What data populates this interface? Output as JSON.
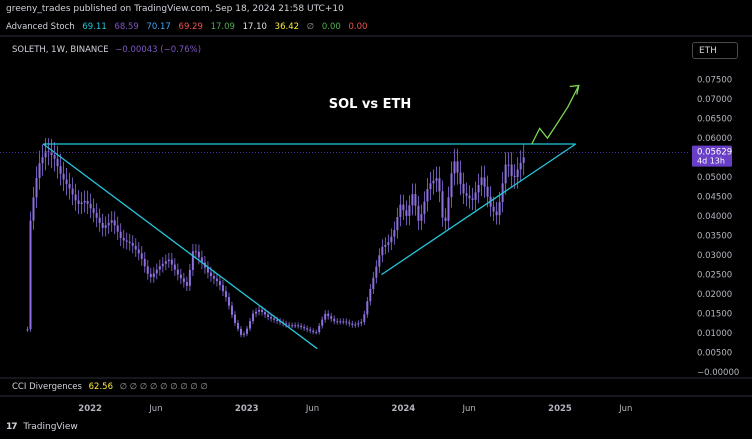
{
  "header": {
    "published": "greeny_trades published on TradingView.com, Sep 18, 2024 21:58 UTC+10"
  },
  "indicator_row": {
    "name": "Advanced Stoch",
    "values": [
      {
        "text": "69.11",
        "color": "#26c6da"
      },
      {
        "text": "68.59",
        "color": "#7e57c2"
      },
      {
        "text": "70.17",
        "color": "#42a5f5"
      },
      {
        "text": "69.29",
        "color": "#ef5350"
      },
      {
        "text": "17.09",
        "color": "#4caf50"
      },
      {
        "text": "17.10",
        "color": "#e0e0e0"
      },
      {
        "text": "36.42",
        "color": "#ffeb3b"
      },
      {
        "text": "∅",
        "color": "#9e9e9e"
      },
      {
        "text": "0.00",
        "color": "#4caf50"
      },
      {
        "text": "0.00",
        "color": "#ef5350"
      }
    ]
  },
  "symbol_row": {
    "symbol": "SOLETH, 1W, BINANCE",
    "change": "−0.00043 (−0.76%)",
    "change_color": "#7e57c2"
  },
  "currency_button": "ETH",
  "cci_row": {
    "name": "CCI Divergences",
    "value": "62.56",
    "value_color": "#ffeb3b",
    "placeholders": [
      "∅",
      "∅",
      "∅",
      "∅",
      "∅",
      "∅",
      "∅",
      "∅",
      "∅"
    ]
  },
  "footer": {
    "brand": "TradingView",
    "logo_glyph": "17"
  },
  "colors": {
    "candle": "#8d6fe0",
    "trendline": "#26c6da",
    "projection": "#7ed957",
    "price_badge": "#6a3fc7"
  },
  "chart_data": {
    "type": "candlestick",
    "title": "SOL vs ETH",
    "price_label": {
      "value": "0.05629",
      "countdown": "4d 13h"
    },
    "y_ticks": [
      0.075,
      0.07,
      0.065,
      0.06,
      0.055,
      0.05,
      0.045,
      0.04,
      0.035,
      0.03,
      0.025,
      0.02,
      0.015,
      0.01,
      0.005,
      0.0
    ],
    "y_tick_labels": [
      "0.07500",
      "0.07000",
      "0.06500",
      "0.06000",
      "0.05500",
      "0.05000",
      "0.04500",
      "0.04000",
      "0.03500",
      "0.03000",
      "0.02500",
      "0.02000",
      "0.01500",
      "0.01000",
      "0.00500",
      "−0.00000"
    ],
    "ylim": [
      -0.001,
      0.0785
    ],
    "x_ticks": [
      {
        "label": "2022",
        "t": 2022.0
      },
      {
        "label": "Jun",
        "t": 2022.42
      },
      {
        "label": "2023",
        "t": 2023.0
      },
      {
        "label": "Jun",
        "t": 2023.42
      },
      {
        "label": "2024",
        "t": 2024.0
      },
      {
        "label": "Jun",
        "t": 2024.42
      },
      {
        "label": "2025",
        "t": 2025.0
      },
      {
        "label": "Jun",
        "t": 2025.42
      }
    ],
    "xlim": [
      2021.45,
      2025.83
    ],
    "price_path": [
      [
        2021.6,
        0.011
      ],
      [
        2021.62,
        0.04
      ],
      [
        2021.67,
        0.053
      ],
      [
        2021.72,
        0.057
      ],
      [
        2021.77,
        0.055
      ],
      [
        2021.82,
        0.05
      ],
      [
        2021.87,
        0.047
      ],
      [
        2021.92,
        0.043
      ],
      [
        2021.97,
        0.044
      ],
      [
        2022.02,
        0.041
      ],
      [
        2022.08,
        0.037
      ],
      [
        2022.14,
        0.039
      ],
      [
        2022.2,
        0.034
      ],
      [
        2022.26,
        0.033
      ],
      [
        2022.32,
        0.03
      ],
      [
        2022.38,
        0.024
      ],
      [
        2022.44,
        0.027
      ],
      [
        2022.5,
        0.029
      ],
      [
        2022.56,
        0.025
      ],
      [
        2022.62,
        0.022
      ],
      [
        2022.66,
        0.032
      ],
      [
        2022.7,
        0.029
      ],
      [
        2022.76,
        0.025
      ],
      [
        2022.82,
        0.023
      ],
      [
        2022.87,
        0.019
      ],
      [
        2022.92,
        0.013
      ],
      [
        2022.97,
        0.009
      ],
      [
        2023.0,
        0.011
      ],
      [
        2023.04,
        0.015
      ],
      [
        2023.08,
        0.016
      ],
      [
        2023.14,
        0.014
      ],
      [
        2023.2,
        0.013
      ],
      [
        2023.26,
        0.012
      ],
      [
        2023.32,
        0.012
      ],
      [
        2023.38,
        0.011
      ],
      [
        2023.44,
        0.01
      ],
      [
        2023.5,
        0.015
      ],
      [
        2023.56,
        0.013
      ],
      [
        2023.62,
        0.013
      ],
      [
        2023.68,
        0.012
      ],
      [
        2023.74,
        0.013
      ],
      [
        2023.78,
        0.02
      ],
      [
        2023.82,
        0.026
      ],
      [
        2023.86,
        0.032
      ],
      [
        2023.9,
        0.033
      ],
      [
        2023.94,
        0.036
      ],
      [
        2023.98,
        0.043
      ],
      [
        2024.02,
        0.04
      ],
      [
        2024.06,
        0.046
      ],
      [
        2024.1,
        0.038
      ],
      [
        2024.16,
        0.048
      ],
      [
        2024.22,
        0.05
      ],
      [
        2024.26,
        0.036
      ],
      [
        2024.32,
        0.055
      ],
      [
        2024.38,
        0.046
      ],
      [
        2024.44,
        0.044
      ],
      [
        2024.5,
        0.05
      ],
      [
        2024.56,
        0.042
      ],
      [
        2024.6,
        0.04
      ],
      [
        2024.66,
        0.055
      ],
      [
        2024.7,
        0.049
      ],
      [
        2024.74,
        0.053
      ],
      [
        2024.78,
        0.056
      ]
    ],
    "trendlines": [
      {
        "name": "resistance",
        "from": [
          2021.7,
          0.0585
        ],
        "to": [
          2025.1,
          0.0585
        ]
      },
      {
        "name": "downtrend",
        "from": [
          2021.7,
          0.0585
        ],
        "to": [
          2023.45,
          0.006
        ]
      },
      {
        "name": "uptrend",
        "from": [
          2023.86,
          0.025
        ],
        "to": [
          2025.1,
          0.0585
        ]
      }
    ],
    "projection": [
      [
        2024.82,
        0.0585
      ],
      [
        2024.87,
        0.0625
      ],
      [
        2024.92,
        0.06
      ],
      [
        2024.97,
        0.063
      ],
      [
        2025.05,
        0.068
      ],
      [
        2025.12,
        0.0735
      ]
    ]
  }
}
